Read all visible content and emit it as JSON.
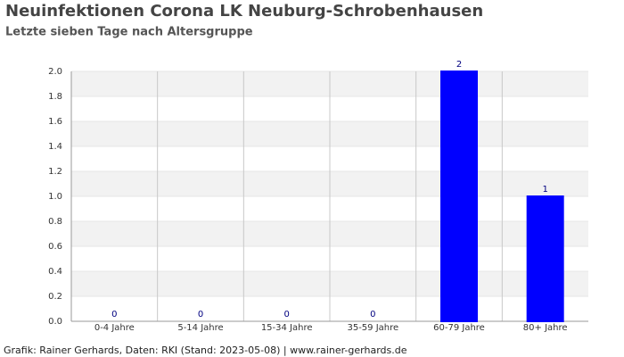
{
  "chart_data": {
    "type": "bar",
    "title": "Neuinfektionen Corona LK Neuburg-Schrobenhausen",
    "subtitle": "Letzte sieben Tage nach Altersgruppe",
    "categories": [
      "0-4 Jahre",
      "5-14 Jahre",
      "15-34 Jahre",
      "35-59 Jahre",
      "60-79 Jahre",
      "80+ Jahre"
    ],
    "values": [
      0,
      0,
      0,
      0,
      2,
      1
    ],
    "color": "#0000ff",
    "ylim": [
      0,
      2
    ],
    "yticks": [
      {
        "value": 0,
        "label": "0.0"
      },
      0.2,
      0.4,
      0.6,
      0.8,
      {
        "value": 1,
        "label": "1.0"
      },
      1.2,
      1.4,
      1.6,
      1.8,
      {
        "value": 2,
        "label": "2.0"
      }
    ],
    "grid": true,
    "footer": "Grafik: Rainer Gerhards, Daten: RKI (Stand: 2023-05-08) | www.rainer-gerhards.de"
  }
}
